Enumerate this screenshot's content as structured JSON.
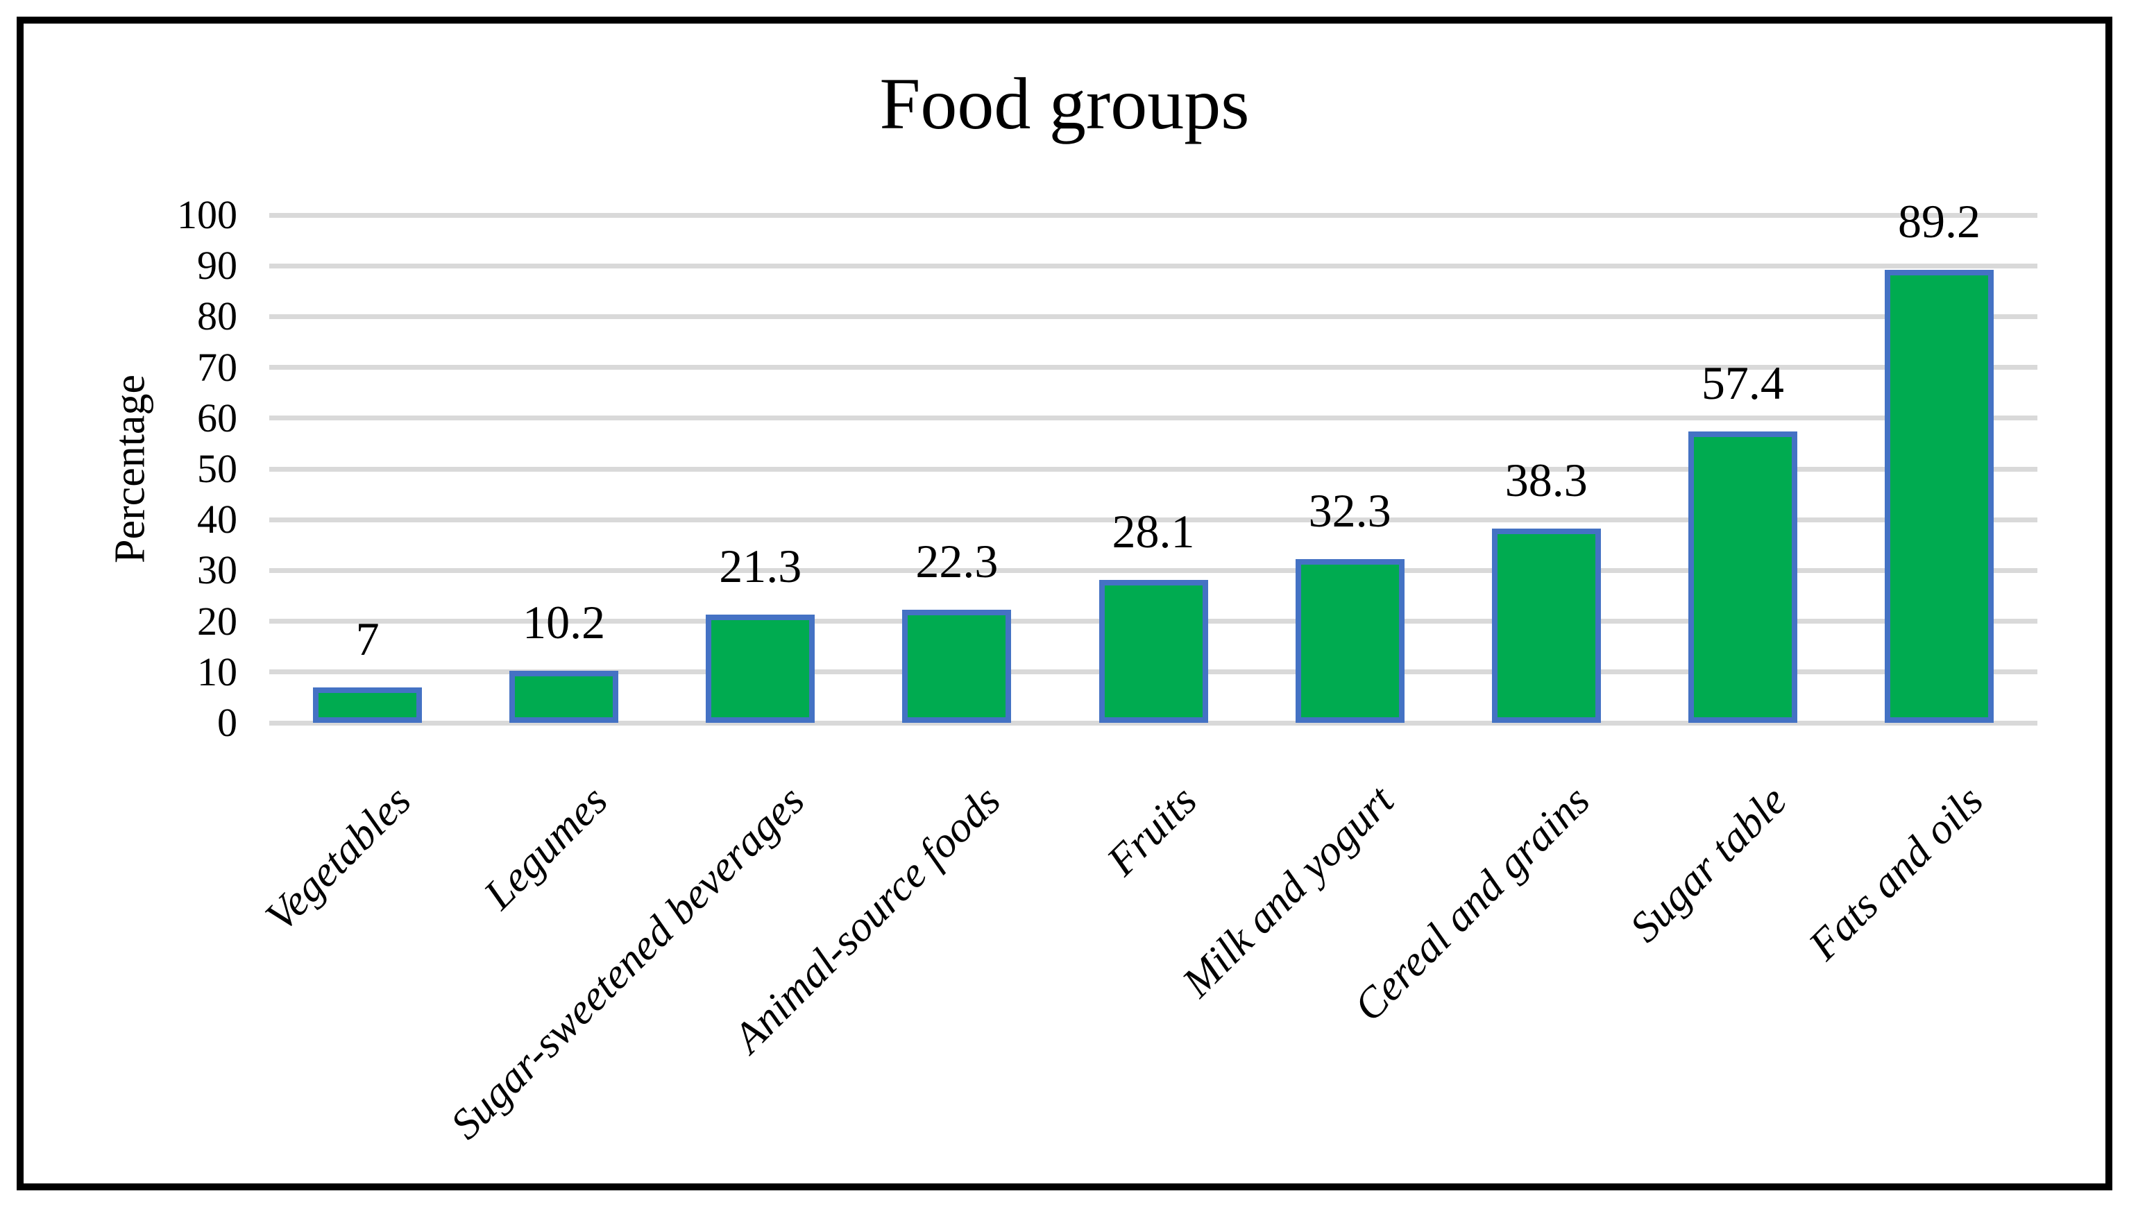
{
  "chart_data": {
    "type": "bar",
    "title": "Food groups",
    "ylabel": "Percentage",
    "xlabel": "",
    "categories": [
      "Vegetables",
      "Legumes",
      "Sugar-sweetened beverages",
      "Animal-source foods",
      "Fruits",
      "Milk and yogurt",
      "Cereal and grains",
      "Sugar table",
      "Fats and oils"
    ],
    "values": [
      7,
      10.2,
      21.3,
      22.3,
      28.1,
      32.3,
      38.3,
      57.4,
      89.2
    ],
    "value_labels": [
      "7",
      "10.2",
      "21.3",
      "22.3",
      "28.1",
      "32.3",
      "38.3",
      "57.4",
      "89.2"
    ],
    "ylim": [
      0,
      100
    ],
    "yticks": [
      0,
      10,
      20,
      30,
      40,
      50,
      60,
      70,
      80,
      90,
      100
    ],
    "grid": true,
    "legend_position": "none",
    "colors": {
      "bar_fill": "#00ab50",
      "bar_border": "#4472c4",
      "gridline": "#d9d9d9",
      "text": "#000000",
      "background": "#ffffff",
      "frame_border": "#000000"
    }
  }
}
